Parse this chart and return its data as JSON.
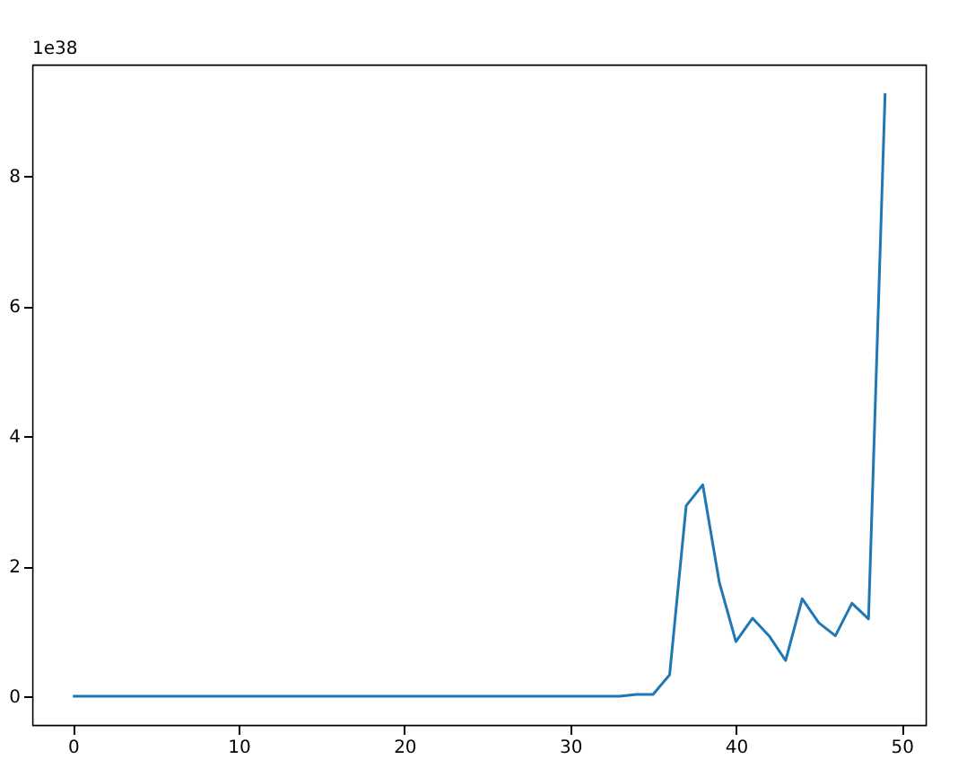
{
  "chart_data": {
    "type": "line",
    "x": [
      0,
      1,
      2,
      3,
      4,
      5,
      6,
      7,
      8,
      9,
      10,
      11,
      12,
      13,
      14,
      15,
      16,
      17,
      18,
      19,
      20,
      21,
      22,
      23,
      24,
      25,
      26,
      27,
      28,
      29,
      30,
      31,
      32,
      33,
      34,
      35,
      36,
      37,
      38,
      39,
      40,
      41,
      42,
      43,
      44,
      45,
      46,
      47,
      48,
      49
    ],
    "series": [
      {
        "color": "#1f77b4",
        "values": [
          0,
          0,
          0,
          0,
          0,
          0,
          0,
          0,
          0,
          0,
          0,
          0,
          0,
          0,
          0,
          0,
          0,
          0,
          0,
          0,
          0,
          0,
          0,
          0,
          0,
          0,
          0,
          0,
          0,
          0,
          0,
          0,
          0,
          0,
          0.03,
          0.03,
          0.33,
          2.93,
          3.25,
          1.75,
          0.84,
          1.2,
          0.93,
          0.55,
          1.5,
          1.13,
          0.93,
          1.43,
          1.19,
          9.27
        ]
      }
    ],
    "xlim": [
      -2.45,
      51.45
    ],
    "xticks": [
      0,
      10,
      20,
      30,
      40,
      50
    ],
    "ylim": [
      -0.44,
      9.71
    ],
    "yticks": [
      0,
      2,
      4,
      6,
      8
    ],
    "annotations": [
      "1e38"
    ]
  }
}
